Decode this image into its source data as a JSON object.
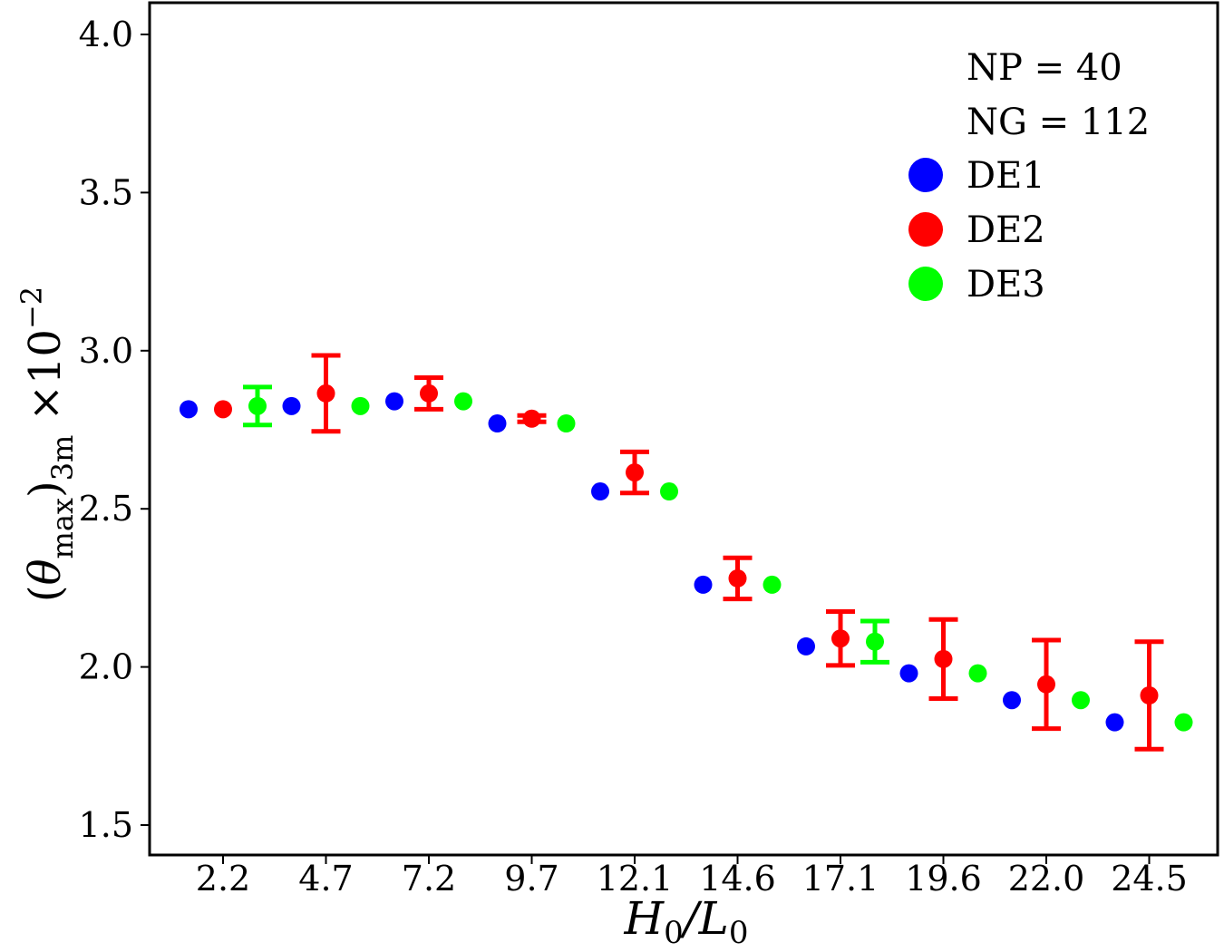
{
  "chart_data": {
    "type": "scatter",
    "x_ticks": [
      "2.2",
      "4.7",
      "7.2",
      "9.7",
      "12.1",
      "14.6",
      "17.1",
      "19.6",
      "22.0",
      "24.5"
    ],
    "y_ticks": [
      "1.5",
      "2.0",
      "2.5",
      "3.0",
      "3.5",
      "4.0"
    ],
    "ylim": [
      1.42,
      4.1
    ],
    "grid": false,
    "legend_position": "top-right",
    "annotations": [
      "NP = 40",
      "NG = 112"
    ],
    "series": [
      {
        "name": "DE1",
        "color": "#0000ff",
        "values": [
          2.815,
          2.825,
          2.84,
          2.77,
          2.555,
          2.26,
          2.065,
          1.98,
          1.895,
          1.825
        ]
      },
      {
        "name": "DE2",
        "color": "#ff0000",
        "values": [
          2.815,
          2.865,
          2.865,
          2.785,
          2.615,
          2.28,
          2.09,
          2.025,
          1.945,
          1.91
        ],
        "error": [
          0.0,
          0.12,
          0.05,
          0.01,
          0.065,
          0.065,
          0.085,
          0.125,
          0.14,
          0.17
        ]
      },
      {
        "name": "DE3",
        "color": "#00ff00",
        "values": [
          2.825,
          2.825,
          2.84,
          2.77,
          2.555,
          2.26,
          2.08,
          1.98,
          1.895,
          1.825
        ],
        "error": [
          0.06,
          0.0,
          0.0,
          0.0,
          0.0,
          0.0,
          0.065,
          0.0,
          0.0,
          0.0
        ]
      }
    ]
  }
}
